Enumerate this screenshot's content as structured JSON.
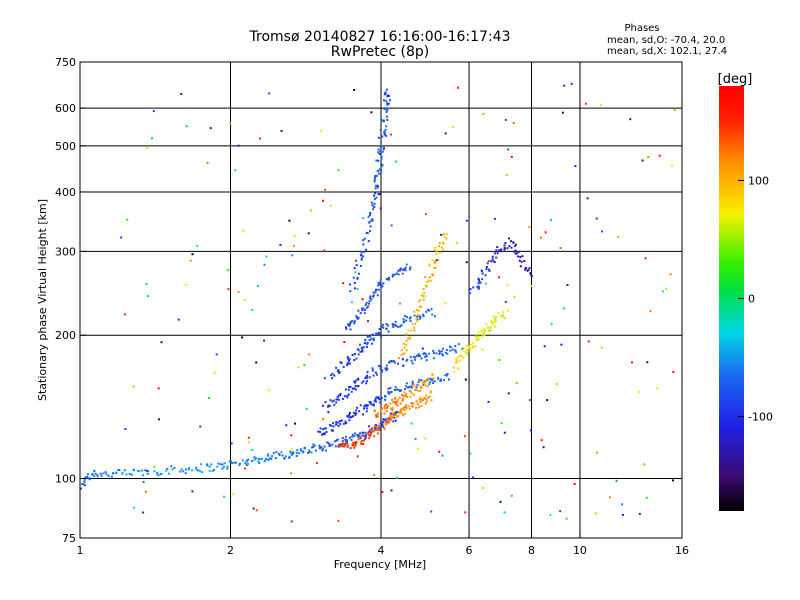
{
  "chart_data": {
    "type": "scatter",
    "title": "Tromsø 20140827 16:16:00-16:17:43",
    "subtitle": "RwPretec (8p)",
    "xlabel": "Frequency [MHz]",
    "ylabel": "Stationary phase Virtual Height [km]",
    "x_scale": "log",
    "y_scale": "log",
    "xlim": [
      1,
      16
    ],
    "ylim": [
      75,
      750
    ],
    "x_ticks": [
      1,
      2,
      4,
      6,
      8,
      10,
      16
    ],
    "x_tick_labels": [
      "1",
      "2",
      "4",
      "6",
      "8",
      "10",
      "16"
    ],
    "x_grid": [
      2,
      4,
      6,
      8,
      10
    ],
    "y_ticks": [
      75,
      100,
      200,
      300,
      400,
      500,
      600,
      750
    ],
    "y_tick_labels": [
      "75",
      "100",
      "200",
      "300",
      "400",
      "500",
      "600",
      "750"
    ],
    "y_grid": [
      100,
      200,
      300,
      400,
      500,
      600
    ],
    "grid": true,
    "legend_header": "Phases",
    "legend_lines": [
      "mean, sd,O: -70.4, 20.0",
      "mean, sd,X: 102.1, 27.4"
    ],
    "legend_position": "top-right",
    "colorbar": {
      "label": "[deg]",
      "range": [
        -180,
        180
      ],
      "tick_values": [
        100,
        0,
        -100
      ],
      "tick_labels": [
        "100",
        "0",
        "-100"
      ],
      "colormap": "rainbow"
    },
    "series": [
      {
        "name": "O",
        "mean_phase": -70.4,
        "traces": [
          {
            "points": [
              [
                1.0,
                96,
                -80
              ],
              [
                1.05,
                103,
                -60
              ],
              [
                1.15,
                102,
                -55
              ],
              [
                1.3,
                103,
                -50
              ],
              [
                1.5,
                104,
                -55
              ],
              [
                1.7,
                105,
                -50
              ],
              [
                1.9,
                106,
                -55
              ],
              [
                2.1,
                108,
                -55
              ],
              [
                2.3,
                110,
                -60
              ],
              [
                2.5,
                112,
                -60
              ],
              [
                2.7,
                113,
                -65
              ],
              [
                2.9,
                115,
                -65
              ],
              [
                3.1,
                117,
                -70
              ],
              [
                3.3,
                119,
                -75
              ],
              [
                3.5,
                121,
                -80
              ],
              [
                3.7,
                124,
                -85
              ],
              [
                3.9,
                128,
                -90
              ],
              [
                4.1,
                132,
                -95
              ],
              [
                4.3,
                136,
                -100
              ]
            ]
          },
          {
            "points": [
              [
                3.0,
                125,
                -90
              ],
              [
                3.2,
                128,
                -95
              ],
              [
                3.4,
                133,
                -100
              ],
              [
                3.6,
                138,
                -95
              ],
              [
                3.8,
                143,
                -90
              ],
              [
                4.0,
                148,
                -85
              ],
              [
                4.3,
                154,
                -75
              ],
              [
                4.7,
                158,
                -70
              ],
              [
                5.1,
                160,
                -70
              ],
              [
                5.5,
                163,
                -65
              ]
            ]
          },
          {
            "points": [
              [
                3.1,
                142,
                -100
              ],
              [
                3.3,
                148,
                -95
              ],
              [
                3.5,
                155,
                -95
              ],
              [
                3.7,
                162,
                -90
              ],
              [
                3.9,
                168,
                -85
              ],
              [
                4.2,
                173,
                -80
              ],
              [
                4.6,
                178,
                -75
              ],
              [
                5.0,
                181,
                -70
              ],
              [
                5.4,
                185,
                -65
              ],
              [
                5.8,
                189,
                -60
              ]
            ]
          },
          {
            "points": [
              [
                3.2,
                165,
                -95
              ],
              [
                3.4,
                175,
                -90
              ],
              [
                3.6,
                185,
                -90
              ],
              [
                3.8,
                195,
                -85
              ],
              [
                4.0,
                205,
                -80
              ],
              [
                4.3,
                212,
                -75
              ],
              [
                4.7,
                218,
                -70
              ],
              [
                5.1,
                224,
                -65
              ]
            ]
          },
          {
            "points": [
              [
                3.4,
                205,
                -90
              ],
              [
                3.6,
                220,
                -85
              ],
              [
                3.8,
                238,
                -80
              ],
              [
                4.0,
                255,
                -80
              ],
              [
                4.3,
                270,
                -75
              ],
              [
                4.6,
                283,
                -70
              ]
            ]
          },
          {
            "points": [
              [
                3.5,
                250,
                -90
              ],
              [
                3.65,
                290,
                -85
              ],
              [
                3.8,
                340,
                -85
              ],
              [
                3.9,
                390,
                -80
              ],
              [
                3.95,
                440,
                -80
              ],
              [
                4.0,
                490,
                -75
              ],
              [
                4.05,
                550,
                -75
              ],
              [
                4.1,
                610,
                -80
              ],
              [
                4.15,
                650,
                -85
              ]
            ]
          }
        ]
      },
      {
        "name": "X",
        "mean_phase": 102.1,
        "traces": [
          {
            "points": [
              [
                3.3,
                116,
                150
              ],
              [
                3.5,
                118,
                145
              ],
              [
                3.7,
                121,
                140
              ],
              [
                3.9,
                126,
                135
              ],
              [
                4.1,
                131,
                125
              ],
              [
                4.3,
                136,
                120
              ],
              [
                4.5,
                140,
                120
              ],
              [
                4.8,
                145,
                115
              ],
              [
                5.1,
                150,
                115
              ]
            ]
          },
          {
            "points": [
              [
                3.9,
                136,
                130
              ],
              [
                4.1,
                140,
                125
              ],
              [
                4.3,
                145,
                120
              ],
              [
                4.5,
                150,
                115
              ],
              [
                4.8,
                157,
                110
              ],
              [
                5.1,
                163,
                105
              ]
            ]
          },
          {
            "points": [
              [
                4.4,
                180,
                100
              ],
              [
                4.6,
                205,
                100
              ],
              [
                4.8,
                235,
                100
              ],
              [
                5.0,
                265,
                100
              ],
              [
                5.2,
                300,
                95
              ],
              [
                5.4,
                330,
                95
              ]
            ]
          },
          {
            "points": [
              [
                5.6,
                170,
                80
              ],
              [
                5.9,
                185,
                75
              ],
              [
                6.2,
                195,
                70
              ],
              [
                6.5,
                205,
                65
              ],
              [
                6.8,
                215,
                60
              ],
              [
                7.1,
                225,
                60
              ]
            ]
          },
          {
            "points": [
              [
                6.1,
                245,
                -80
              ],
              [
                6.4,
                270,
                -90
              ],
              [
                6.8,
                295,
                -110
              ],
              [
                7.2,
                315,
                -120
              ],
              [
                7.6,
                290,
                -130
              ],
              [
                8.0,
                265,
                -120
              ]
            ]
          }
        ]
      }
    ],
    "noise_x_range": [
      1.2,
      15.5
    ],
    "noise_y_range": [
      80,
      680
    ],
    "noise_count": 220
  }
}
